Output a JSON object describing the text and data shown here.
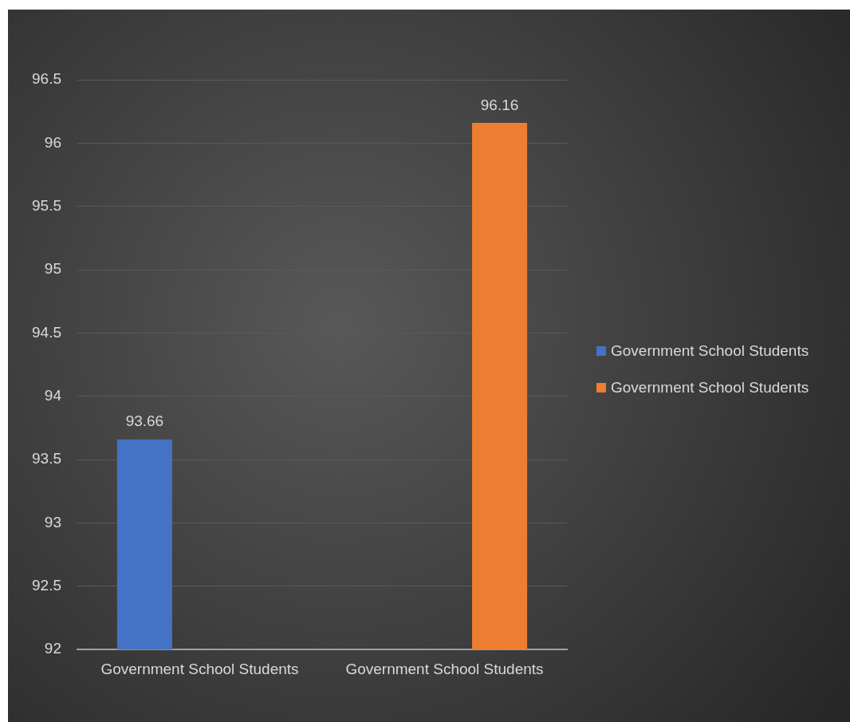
{
  "chart_data": {
    "type": "bar",
    "categories": [
      "Government School Students",
      "Government School Students"
    ],
    "series": [
      {
        "name": "Government School Students",
        "color": "#4472c4",
        "values": [
          93.66,
          null
        ]
      },
      {
        "name": "Government School Students",
        "color": "#ed7d31",
        "values": [
          null,
          96.16
        ]
      }
    ],
    "ylim": [
      92,
      96.5
    ],
    "yticks": [
      92,
      92.5,
      93,
      93.5,
      94,
      94.5,
      95,
      95.5,
      96,
      96.5
    ],
    "grid": "y",
    "legend": "right",
    "data_labels": true
  }
}
